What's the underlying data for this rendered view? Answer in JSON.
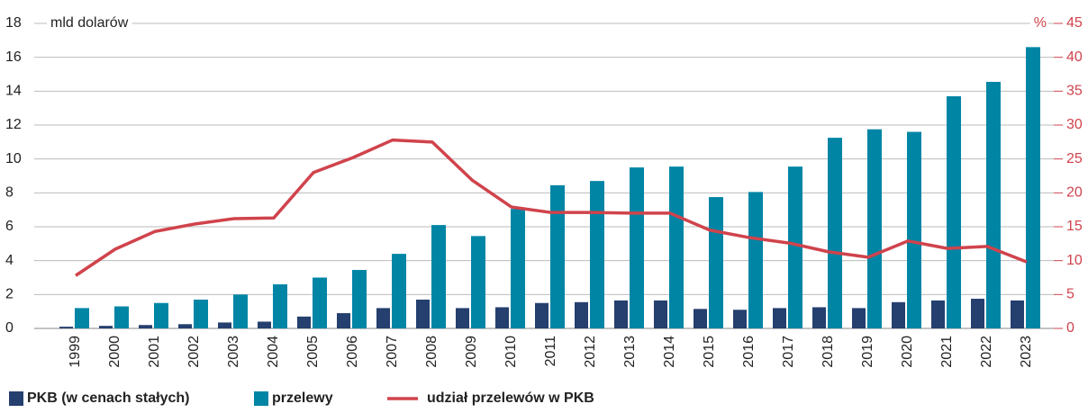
{
  "chart_data": {
    "type": "bar-line",
    "y_unit_label": "mld dolarów",
    "y2_unit_label": "%",
    "categories": [
      "1999",
      "2000",
      "2001",
      "2002",
      "2003",
      "2004",
      "2005",
      "2006",
      "2007",
      "2008",
      "2009",
      "2010",
      "2011",
      "2012",
      "2013",
      "2014",
      "2015",
      "2016",
      "2017",
      "2018",
      "2019",
      "2020",
      "2021",
      "2022",
      "2023"
    ],
    "series": [
      {
        "name": "PKB (w cenach stałych)",
        "color": "#253f6e",
        "kind": "bar",
        "values": [
          0.1,
          0.15,
          0.2,
          0.25,
          0.35,
          0.4,
          0.7,
          0.9,
          1.2,
          1.7,
          1.2,
          1.25,
          1.5,
          1.55,
          1.65,
          1.65,
          1.15,
          1.1,
          1.2,
          1.25,
          1.2,
          1.55,
          1.65,
          1.75,
          1.65
        ]
      },
      {
        "name": "przelewy",
        "color": "#0085a5",
        "kind": "bar",
        "values": [
          1.2,
          1.3,
          1.5,
          1.7,
          2.0,
          2.6,
          3.0,
          3.45,
          4.4,
          6.1,
          5.45,
          7.05,
          8.45,
          8.7,
          9.5,
          9.55,
          7.75,
          8.05,
          9.55,
          11.25,
          11.75,
          11.6,
          13.7,
          14.55,
          16.6
        ]
      },
      {
        "name": "udział przelewów w PKB",
        "color": "#d0434c",
        "kind": "line",
        "axis": "y2",
        "values": [
          7.8,
          11.7,
          14.3,
          15.4,
          16.2,
          16.3,
          23,
          25.2,
          27.8,
          27.5,
          21.9,
          17.9,
          17.1,
          17.1,
          17,
          17,
          14.5,
          13.4,
          12.6,
          11.3,
          10.5,
          12.9,
          11.8,
          12.1,
          9.8
        ]
      }
    ],
    "ylim": [
      0,
      18
    ],
    "yticks": [
      0,
      2,
      4,
      6,
      8,
      10,
      12,
      14,
      16,
      18
    ],
    "y2lim": [
      0,
      45
    ],
    "y2ticks": [
      0,
      5,
      10,
      15,
      20,
      25,
      30,
      35,
      40,
      45
    ],
    "y2_color": "#d0434c",
    "grid": true
  }
}
